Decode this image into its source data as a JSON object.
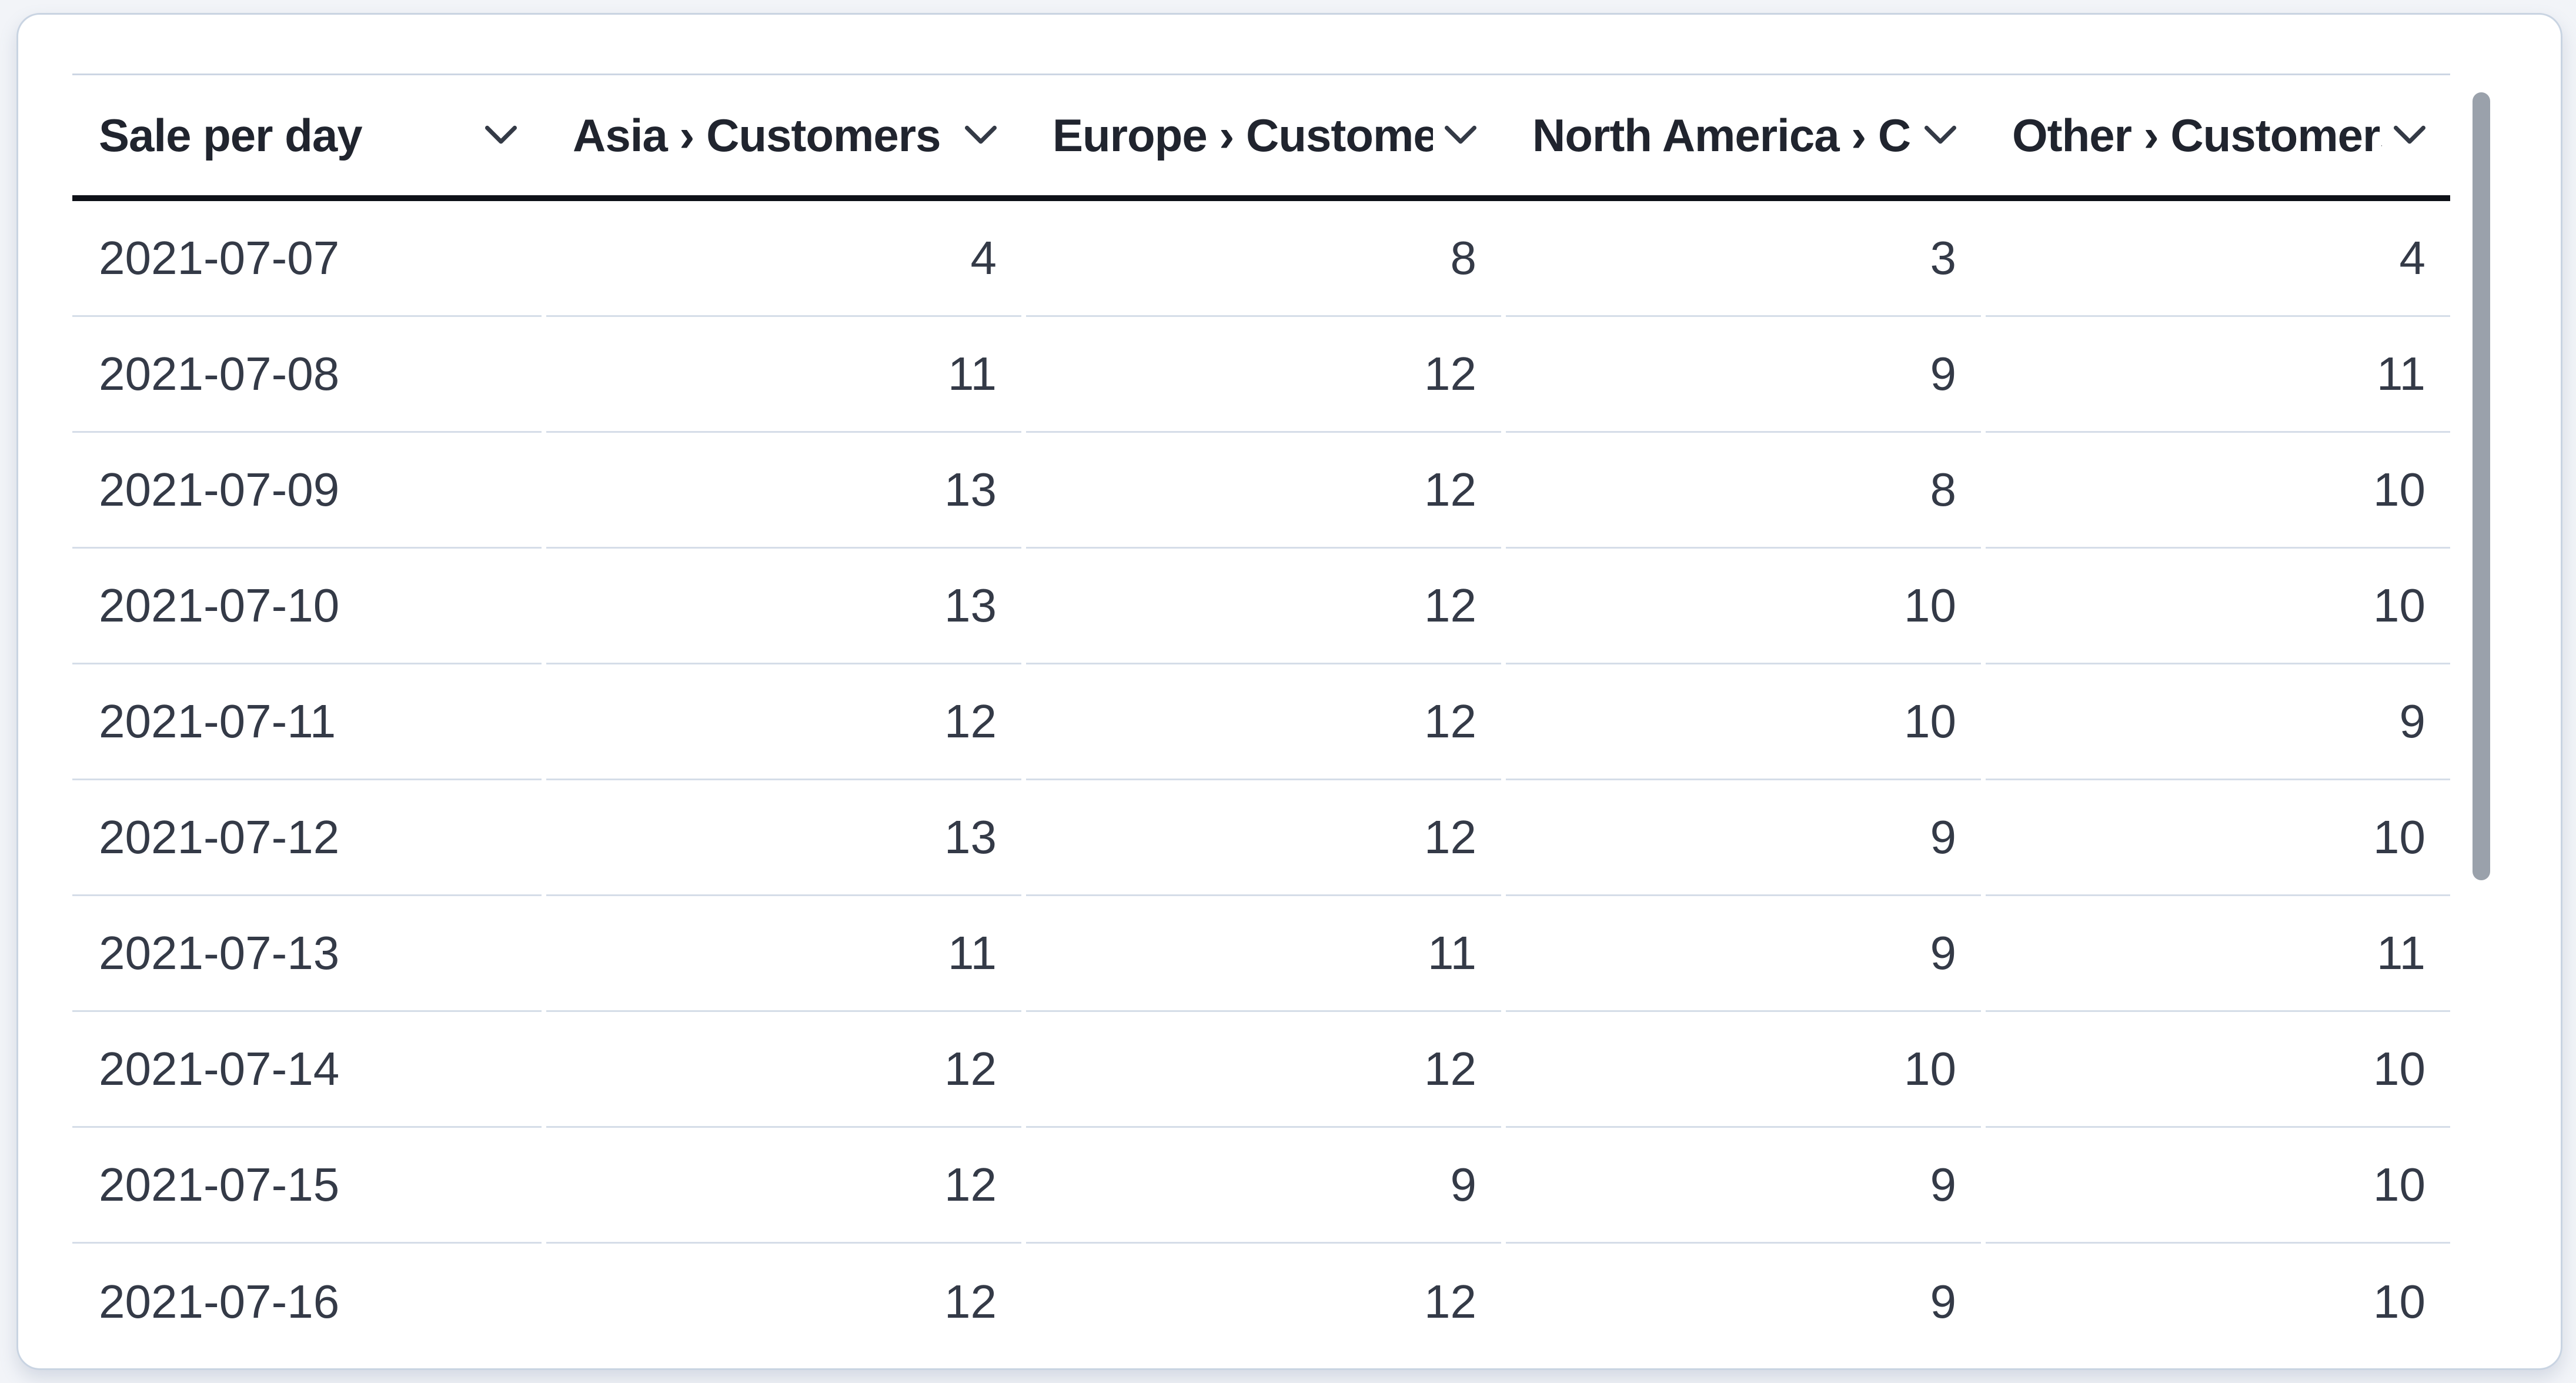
{
  "table": {
    "columns": [
      {
        "id": "sale_per_day",
        "label": "Sale per day",
        "align": "left"
      },
      {
        "id": "asia",
        "label": "Asia › Customers",
        "align": "right"
      },
      {
        "id": "europe",
        "label": "Europe › Customers",
        "align": "right"
      },
      {
        "id": "north_america",
        "label": "North America › Customers",
        "align": "right"
      },
      {
        "id": "other",
        "label": "Other › Customers",
        "align": "right"
      }
    ],
    "rows": [
      [
        "2021-07-07",
        "4",
        "8",
        "3",
        "4"
      ],
      [
        "2021-07-08",
        "11",
        "12",
        "9",
        "11"
      ],
      [
        "2021-07-09",
        "13",
        "12",
        "8",
        "10"
      ],
      [
        "2021-07-10",
        "13",
        "12",
        "10",
        "10"
      ],
      [
        "2021-07-11",
        "12",
        "12",
        "10",
        "9"
      ],
      [
        "2021-07-12",
        "13",
        "12",
        "9",
        "10"
      ],
      [
        "2021-07-13",
        "11",
        "11",
        "9",
        "11"
      ],
      [
        "2021-07-14",
        "12",
        "12",
        "10",
        "10"
      ],
      [
        "2021-07-15",
        "12",
        "9",
        "9",
        "10"
      ],
      [
        "2021-07-16",
        "12",
        "12",
        "9",
        "10"
      ]
    ]
  },
  "icons": {
    "column_menu": "chevron-down-icon"
  },
  "colors": {
    "page_background": "#f2f4f8",
    "panel_background": "#ffffff",
    "panel_border": "#c9d4e2",
    "table_top_border": "#ccd6e3",
    "header_underline": "#0e1118",
    "header_text": "#20242e",
    "cell_text": "#343a47",
    "row_divider": "#d5dde8",
    "scrollbar_thumb": "#9aa1ab"
  },
  "scrollbar": {
    "orientation": "vertical",
    "visible": true
  }
}
